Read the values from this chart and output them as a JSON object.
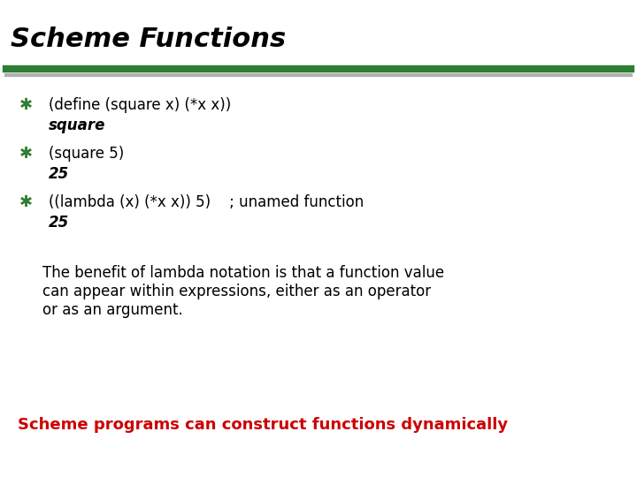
{
  "title": "Scheme Functions",
  "title_fontsize": 22,
  "title_style": "italic",
  "title_weight": "bold",
  "title_color": "#000000",
  "bg_color": "#ffffff",
  "bullet_color": "#2e7d32",
  "bullet_char": "✱",
  "bullet_size": 13,
  "code_fontsize": 12,
  "body_fontsize": 12,
  "red_color": "#cc0000",
  "dark_green": "#2e7d32",
  "light_gray": "#b0b0b0",
  "bullet_items": [
    {
      "bullet_line": "(define (square x) (*x x))",
      "result_line": "square"
    },
    {
      "bullet_line": "(square 5)",
      "result_line": "25"
    },
    {
      "bullet_line": "((lambda (x) (*x x)) 5)    ; unamed function",
      "result_line": "25"
    }
  ],
  "body_text": "The benefit of lambda notation is that a function value\ncan appear within expressions, either as an operator\nor as an argument.",
  "footer_text": "Scheme programs can construct functions dynamically",
  "footer_color": "#cc0000",
  "footer_fontsize": 13,
  "footer_weight": "bold"
}
